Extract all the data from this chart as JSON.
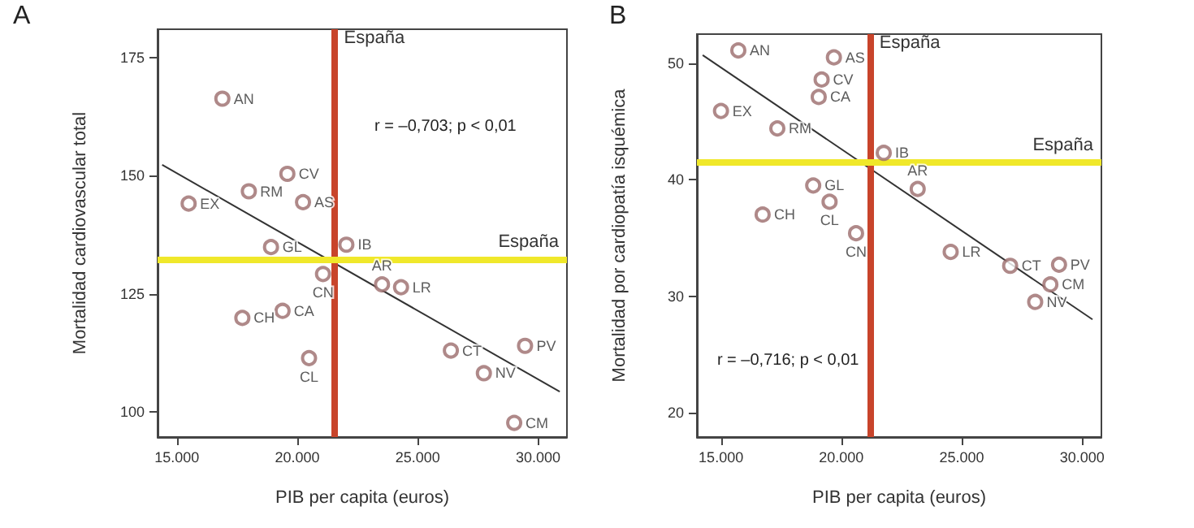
{
  "chart_data": [
    {
      "type": "scatter",
      "title": "A",
      "xlabel": "PIB per capita (euros)",
      "ylabel": "Mortalidad cardiovascular total",
      "grid": false,
      "xlim": [
        14200,
        31200
      ],
      "ylim": [
        94.7,
        181
      ],
      "xticks": [
        {
          "value": 15000,
          "label": "15.000"
        },
        {
          "value": 20000,
          "label": "20.000"
        },
        {
          "value": 25000,
          "label": "25.000"
        },
        {
          "value": 30000,
          "label": "30.000"
        }
      ],
      "yticks": [
        100,
        125,
        150,
        175
      ],
      "series": [
        {
          "type": "scatter",
          "color": "#9b6b6b",
          "marker": "circle",
          "x": [
            16890,
            15490,
            17990,
            19590,
            20240,
            18910,
            22040,
            21070,
            23520,
            24310,
            19390,
            17720,
            20490,
            26380,
            29460,
            27750,
            29010
          ],
          "values": [
            166.3,
            144.1,
            146.7,
            150.4,
            144.4,
            134.9,
            135.4,
            129.2,
            127.0,
            126.4,
            121.4,
            119.9,
            111.4,
            113.0,
            114.0,
            108.2,
            97.7
          ],
          "value_labels": [
            "AN",
            "EX",
            "RM",
            "CV",
            "AS",
            "GL",
            "IB",
            "CN",
            "AR",
            "LR",
            "CA",
            "CH",
            "CL",
            "CT",
            "PV",
            "NV",
            "CM"
          ]
        },
        {
          "type": "line",
          "color": "#333333",
          "marker": "none",
          "x": [
            14390,
            30900
          ],
          "values": [
            152.3,
            104.3
          ]
        }
      ],
      "ref_lines": [
        {
          "axis": "x",
          "value": 21540,
          "label": "España",
          "color": "#c8442b"
        },
        {
          "axis": "y",
          "value": 132.4,
          "label": "España",
          "color": "#f0e82a"
        }
      ],
      "annotations": [
        "r = –0,703; p < 0,01"
      ]
    },
    {
      "type": "scatter",
      "title": "B",
      "xlabel": "PIB per capita (euros)",
      "ylabel": "Mortalidad por cardiopatía isquémica",
      "grid": false,
      "xlim": [
        14000,
        30800
      ],
      "ylim": [
        17.9,
        52.5
      ],
      "xticks": [
        {
          "value": 15000,
          "label": "15.000"
        },
        {
          "value": 20000,
          "label": "20.000"
        },
        {
          "value": 25000,
          "label": "25.000"
        },
        {
          "value": 30000,
          "label": "30.000"
        }
      ],
      "yticks": [
        20,
        30,
        40,
        50
      ],
      "series": [
        {
          "type": "scatter",
          "color": "#9b6b6b",
          "marker": "circle",
          "x": [
            15720,
            19690,
            19180,
            19060,
            15000,
            17340,
            21760,
            23170,
            18830,
            19510,
            16730,
            20610,
            24540,
            27010,
            29040,
            28680,
            28050
          ],
          "values": [
            51.1,
            50.5,
            48.6,
            47.1,
            45.9,
            44.4,
            42.3,
            39.2,
            39.5,
            38.1,
            37.0,
            35.4,
            33.8,
            32.6,
            32.7,
            31.0,
            29.5
          ],
          "value_labels": [
            "AN",
            "AS",
            "CV",
            "CA",
            "EX",
            "RM",
            "IB",
            "AR",
            "GL",
            "CL",
            "CH",
            "CN",
            "LR",
            "CT",
            "PV",
            "CM",
            "NV"
          ]
        },
        {
          "type": "line",
          "color": "#333333",
          "marker": "none",
          "x": [
            14240,
            30430
          ],
          "values": [
            50.7,
            28.0
          ]
        }
      ],
      "ref_lines": [
        {
          "axis": "x",
          "value": 21180,
          "label": "España",
          "color": "#c8442b"
        },
        {
          "axis": "y",
          "value": 41.5,
          "label": "España",
          "color": "#f0e82a"
        }
      ],
      "annotations": [
        "r = –0,716; p < 0,01"
      ]
    }
  ]
}
